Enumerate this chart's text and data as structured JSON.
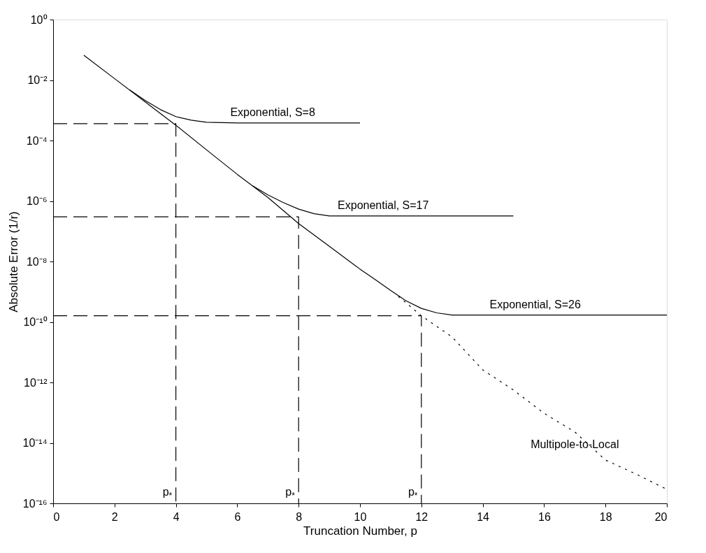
{
  "chart_data": {
    "type": "line",
    "xlabel": "Truncation Number, p",
    "ylabel": "Absolute Error (1/r)",
    "log": "y",
    "xlim": [
      0,
      20
    ],
    "xticks": [
      0,
      2,
      4,
      6,
      8,
      10,
      12,
      14,
      16,
      18,
      20
    ],
    "ylim": [
      1e-16,
      1
    ],
    "yticks": [
      {
        "value": 1e-16,
        "label": "10⁻¹⁶"
      },
      {
        "value": 1e-14,
        "label": "10⁻¹⁴"
      },
      {
        "value": 1e-12,
        "label": "10⁻¹²"
      },
      {
        "value": 1e-10,
        "label": "10⁻¹⁰"
      },
      {
        "value": 1e-08,
        "label": "10⁻⁸"
      },
      {
        "value": 1e-06,
        "label": "10⁻⁶"
      },
      {
        "value": 0.0001,
        "label": "10⁻⁴"
      },
      {
        "value": 0.01,
        "label": "10⁻²"
      },
      {
        "value": 1,
        "label": "10⁰"
      }
    ],
    "grid": false,
    "marker": "none",
    "series": [
      {
        "name": "Exponential, S=26",
        "color": "#000000",
        "line_style": "solid",
        "x": [
          1,
          2,
          3,
          4,
          5,
          6,
          7,
          8,
          9,
          10,
          10.5,
          11,
          11.5,
          12,
          12.5,
          13,
          14,
          20
        ],
        "values": [
          0.066,
          0.0112,
          0.0019,
          0.00032,
          4.9e-05,
          7.6e-06,
          1.3e-06,
          1.8e-07,
          3.2e-08,
          5.6e-09,
          2.5e-09,
          1.1e-09,
          5e-10,
          2.8e-10,
          2e-10,
          1.7e-10,
          1.7e-10,
          1.7e-10
        ]
      },
      {
        "name": "Exponential, S=8",
        "color": "#000000",
        "line_style": "solid",
        "x": [
          2.5,
          3,
          3.5,
          4,
          4.5,
          5,
          6,
          10
        ],
        "values": [
          0.0047,
          0.0021,
          0.00105,
          0.00062,
          0.00047,
          0.0004,
          0.00038,
          0.00038
        ]
      },
      {
        "name": "Exponential, S=17",
        "color": "#000000",
        "line_style": "solid",
        "x": [
          6.5,
          7,
          7.5,
          8,
          8.5,
          9,
          15
        ],
        "values": [
          3.2e-06,
          1.6e-06,
          8.9e-07,
          5.4e-07,
          3.8e-07,
          3.2e-07,
          3.2e-07
        ]
      },
      {
        "name": "Multipole-to-Local",
        "color": "#000000",
        "line_style": "dotted",
        "x": [
          11.25,
          12,
          13,
          14,
          15,
          16,
          17,
          18,
          19,
          20
        ],
        "values": [
          7e-10,
          1.6e-10,
          3.2e-11,
          2.6e-12,
          5.6e-13,
          9.5e-14,
          2.3e-14,
          2.7e-15,
          9.3e-16,
          2.9e-16
        ]
      },
      {
        "color": "#000000",
        "line_style": "dashed",
        "x": [
          0,
          4,
          4
        ],
        "values": [
          0.00036,
          0.00036,
          1e-16
        ]
      },
      {
        "color": "#000000",
        "line_style": "dashed",
        "x": [
          0,
          8,
          8
        ],
        "values": [
          3e-07,
          3e-07,
          1e-16
        ]
      },
      {
        "color": "#000000",
        "line_style": "dashed",
        "x": [
          0,
          12,
          12
        ],
        "values": [
          1.6e-10,
          1.6e-10,
          1e-16
        ]
      }
    ],
    "annotations": [
      {
        "text": "p$_{*}$",
        "x": 4,
        "y": 1.8e-16
      },
      {
        "text": "p$_{*}$",
        "x": 8,
        "y": 1.8e-16
      },
      {
        "text": "p$_{*}$",
        "x": 12,
        "y": 1.8e-16
      }
    ]
  }
}
